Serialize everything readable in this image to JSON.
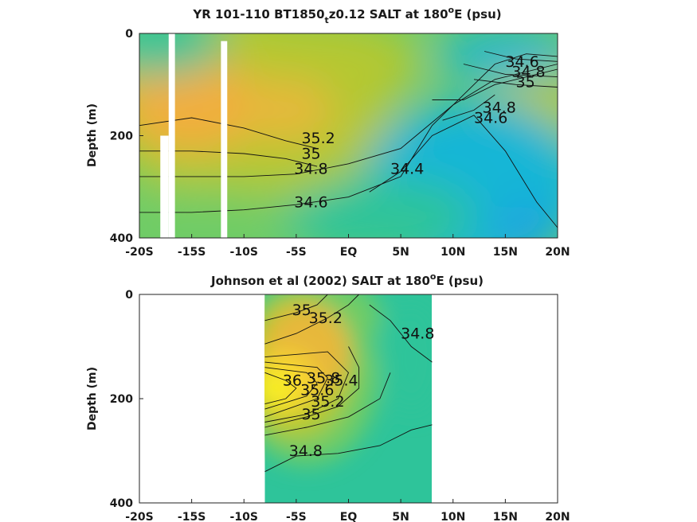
{
  "chart_data": [
    {
      "type": "heatmap",
      "title": "YR 101-110 BT1850",
      "title_sub": "t",
      "title_rest": "z0.12 SALT at 180",
      "title_sup": "o",
      "title_end": "E (psu)",
      "ylabel": "Depth (m)",
      "xlim": [
        -20,
        20
      ],
      "ylim": [
        0,
        400
      ],
      "x_ticks": [
        -20,
        -15,
        -10,
        -5,
        0,
        5,
        10,
        15,
        20
      ],
      "x_tick_labels": [
        "-20S",
        "-15S",
        "-10S",
        "-5S",
        "EQ",
        "5N",
        "10N",
        "15N",
        "20N"
      ],
      "y_ticks": [
        0,
        200,
        400
      ],
      "y_tick_labels": [
        "0",
        "200",
        "400"
      ],
      "data_gaps": [
        {
          "x": [
            -18.0,
            -17.2
          ],
          "y": [
            200,
            400
          ]
        },
        {
          "x": [
            -17.2,
            -16.6
          ],
          "y": [
            0,
            400
          ]
        },
        {
          "x": [
            -12.2,
            -11.6
          ],
          "y": [
            15,
            400
          ]
        }
      ],
      "colormap": {
        "34.3": "#1aa4e0",
        "34.4": "#19b6d6",
        "34.6": "#2ec49a",
        "34.8": "#6fcc66",
        "35.0": "#b4c830",
        "35.2": "#e7b83a",
        "35.3": "#f2ae3d"
      },
      "contours": [
        {
          "label": "35.2",
          "label_pos": [
            -4.5,
            215
          ],
          "points": [
            [
              -20,
              180
            ],
            [
              -15,
              165
            ],
            [
              -10,
              185
            ],
            [
              -6,
              210
            ],
            [
              -3,
              225
            ]
          ]
        },
        {
          "label": "35",
          "label_pos": [
            -4.5,
            245
          ],
          "points": [
            [
              -20,
              230
            ],
            [
              -15,
              230
            ],
            [
              -10,
              235
            ],
            [
              -6,
              245
            ],
            [
              -3,
              260
            ]
          ]
        },
        {
          "label": "34.8",
          "label_pos": [
            -5.2,
            275
          ],
          "points": [
            [
              -20,
              280
            ],
            [
              -15,
              280
            ],
            [
              -10,
              280
            ],
            [
              -5,
              275
            ],
            [
              0,
              255
            ],
            [
              5,
              225
            ],
            [
              10,
              140
            ],
            [
              14,
              90
            ],
            [
              20,
              60
            ]
          ]
        },
        {
          "label": "34.6",
          "label_pos": [
            -5.2,
            340
          ],
          "points": [
            [
              -20,
              350
            ],
            [
              -15,
              350
            ],
            [
              -10,
              345
            ],
            [
              -5,
              335
            ],
            [
              0,
              320
            ],
            [
              5,
              280
            ],
            [
              8,
              180
            ],
            [
              11,
              120
            ],
            [
              14,
              60
            ],
            [
              17,
              40
            ],
            [
              20,
              45
            ]
          ]
        },
        {
          "label": "34.4",
          "label_pos": [
            4,
            275
          ],
          "points": [
            [
              2,
              310
            ],
            [
              5,
              270
            ],
            [
              8,
              200
            ],
            [
              12,
              160
            ],
            [
              15,
              230
            ],
            [
              18,
              330
            ],
            [
              20,
              380
            ]
          ]
        },
        {
          "label": "34.6",
          "label_pos": [
            15,
            65
          ],
          "points": [
            [
              13,
              35
            ],
            [
              16,
              50
            ],
            [
              20,
              55
            ]
          ]
        },
        {
          "label": "34.8",
          "label_pos": [
            15.6,
            85
          ],
          "points": [
            [
              11,
              60
            ],
            [
              15,
              80
            ],
            [
              20,
              85
            ]
          ]
        },
        {
          "label": "35",
          "label_pos": [
            16,
            105
          ],
          "points": [
            [
              12,
              90
            ],
            [
              16,
              100
            ],
            [
              20,
              105
            ]
          ]
        },
        {
          "label": "34.8",
          "label_pos": [
            12.8,
            155
          ],
          "points": [
            [
              8,
              130
            ],
            [
              11,
              130
            ],
            [
              14,
              100
            ],
            [
              18,
              80
            ],
            [
              20,
              70
            ]
          ]
        },
        {
          "label": "34.6",
          "label_pos": [
            12,
            175
          ],
          "points": [
            [
              9,
              170
            ],
            [
              12,
              150
            ],
            [
              14,
              120
            ]
          ]
        }
      ]
    },
    {
      "type": "heatmap",
      "title": "Johnson et al (2002) SALT at 180",
      "title_sup": "o",
      "title_end": "E (psu)",
      "ylabel": "Depth (m)",
      "xlim": [
        -20,
        20
      ],
      "ylim": [
        0,
        400
      ],
      "x_ticks": [
        -20,
        -15,
        -10,
        -5,
        0,
        5,
        10,
        15,
        20
      ],
      "x_tick_labels": [
        "-20S",
        "-15S",
        "-10S",
        "-5S",
        "EQ",
        "5N",
        "10N",
        "15N",
        "20N"
      ],
      "y_ticks": [
        0,
        200,
        400
      ],
      "y_tick_labels": [
        "0",
        "200",
        "400"
      ],
      "data_extent": {
        "x": [
          -8,
          8
        ],
        "y": [
          0,
          400
        ]
      },
      "colormap": {
        "34.6": "#2ec49a",
        "34.8": "#6fcc66",
        "35.0": "#b4c830",
        "35.2": "#e7b83a",
        "35.6": "#f7d430",
        "36.0": "#f8f320"
      },
      "contours": [
        {
          "label": "35",
          "label_pos": [
            -5.4,
            40
          ],
          "points": [
            [
              -8,
              50
            ],
            [
              -5,
              35
            ],
            [
              -3,
              20
            ],
            [
              -2,
              0
            ]
          ]
        },
        {
          "label": "35.2",
          "label_pos": [
            -3.8,
            55
          ],
          "points": [
            [
              -8,
              95
            ],
            [
              -5,
              75
            ],
            [
              -2,
              45
            ],
            [
              0,
              20
            ],
            [
              1,
              0
            ]
          ]
        },
        {
          "label": "34.8",
          "label_pos": [
            5,
            85
          ],
          "points": [
            [
              2,
              20
            ],
            [
              4,
              50
            ],
            [
              6,
              100
            ],
            [
              8,
              130
            ]
          ]
        },
        {
          "label": "36",
          "label_pos": [
            -6.3,
            175
          ],
          "points": [
            [
              -8,
              150
            ],
            [
              -6,
              165
            ],
            [
              -5,
              180
            ],
            [
              -6,
              200
            ],
            [
              -8,
              210
            ]
          ]
        },
        {
          "label": "35.8",
          "label_pos": [
            -4,
            170
          ],
          "points": [
            [
              -8,
              140
            ],
            [
              -4,
              150
            ],
            [
              -3,
              170
            ],
            [
              -4,
              195
            ],
            [
              -8,
              220
            ]
          ]
        },
        {
          "label": "35.6",
          "label_pos": [
            -4.6,
            193
          ],
          "points": [
            [
              -8,
              130
            ],
            [
              -3,
              140
            ],
            [
              -2,
              160
            ],
            [
              -3,
              200
            ],
            [
              -8,
              235
            ]
          ]
        },
        {
          "label": "35.4",
          "label_pos": [
            -2.3,
            175
          ],
          "points": [
            [
              -8,
              120
            ],
            [
              -2,
              110
            ],
            [
              0,
              150
            ],
            [
              -1,
              200
            ],
            [
              -4,
              230
            ],
            [
              -8,
              245
            ]
          ]
        },
        {
          "label": "35.2",
          "label_pos": [
            -3.6,
            215
          ],
          "points": [
            [
              -8,
              255
            ],
            [
              -4,
              235
            ],
            [
              -1,
              215
            ],
            [
              1,
              180
            ],
            [
              1,
              140
            ],
            [
              0,
              100
            ]
          ]
        },
        {
          "label": "35",
          "label_pos": [
            -4.5,
            240
          ],
          "points": [
            [
              -8,
              270
            ],
            [
              -4,
              255
            ],
            [
              0,
              235
            ],
            [
              3,
              200
            ],
            [
              4,
              150
            ]
          ]
        },
        {
          "label": "34.8",
          "label_pos": [
            -5.7,
            310
          ],
          "points": [
            [
              -8,
              340
            ],
            [
              -5,
              310
            ],
            [
              -1,
              305
            ],
            [
              3,
              290
            ],
            [
              6,
              260
            ],
            [
              8,
              250
            ]
          ]
        }
      ]
    }
  ]
}
